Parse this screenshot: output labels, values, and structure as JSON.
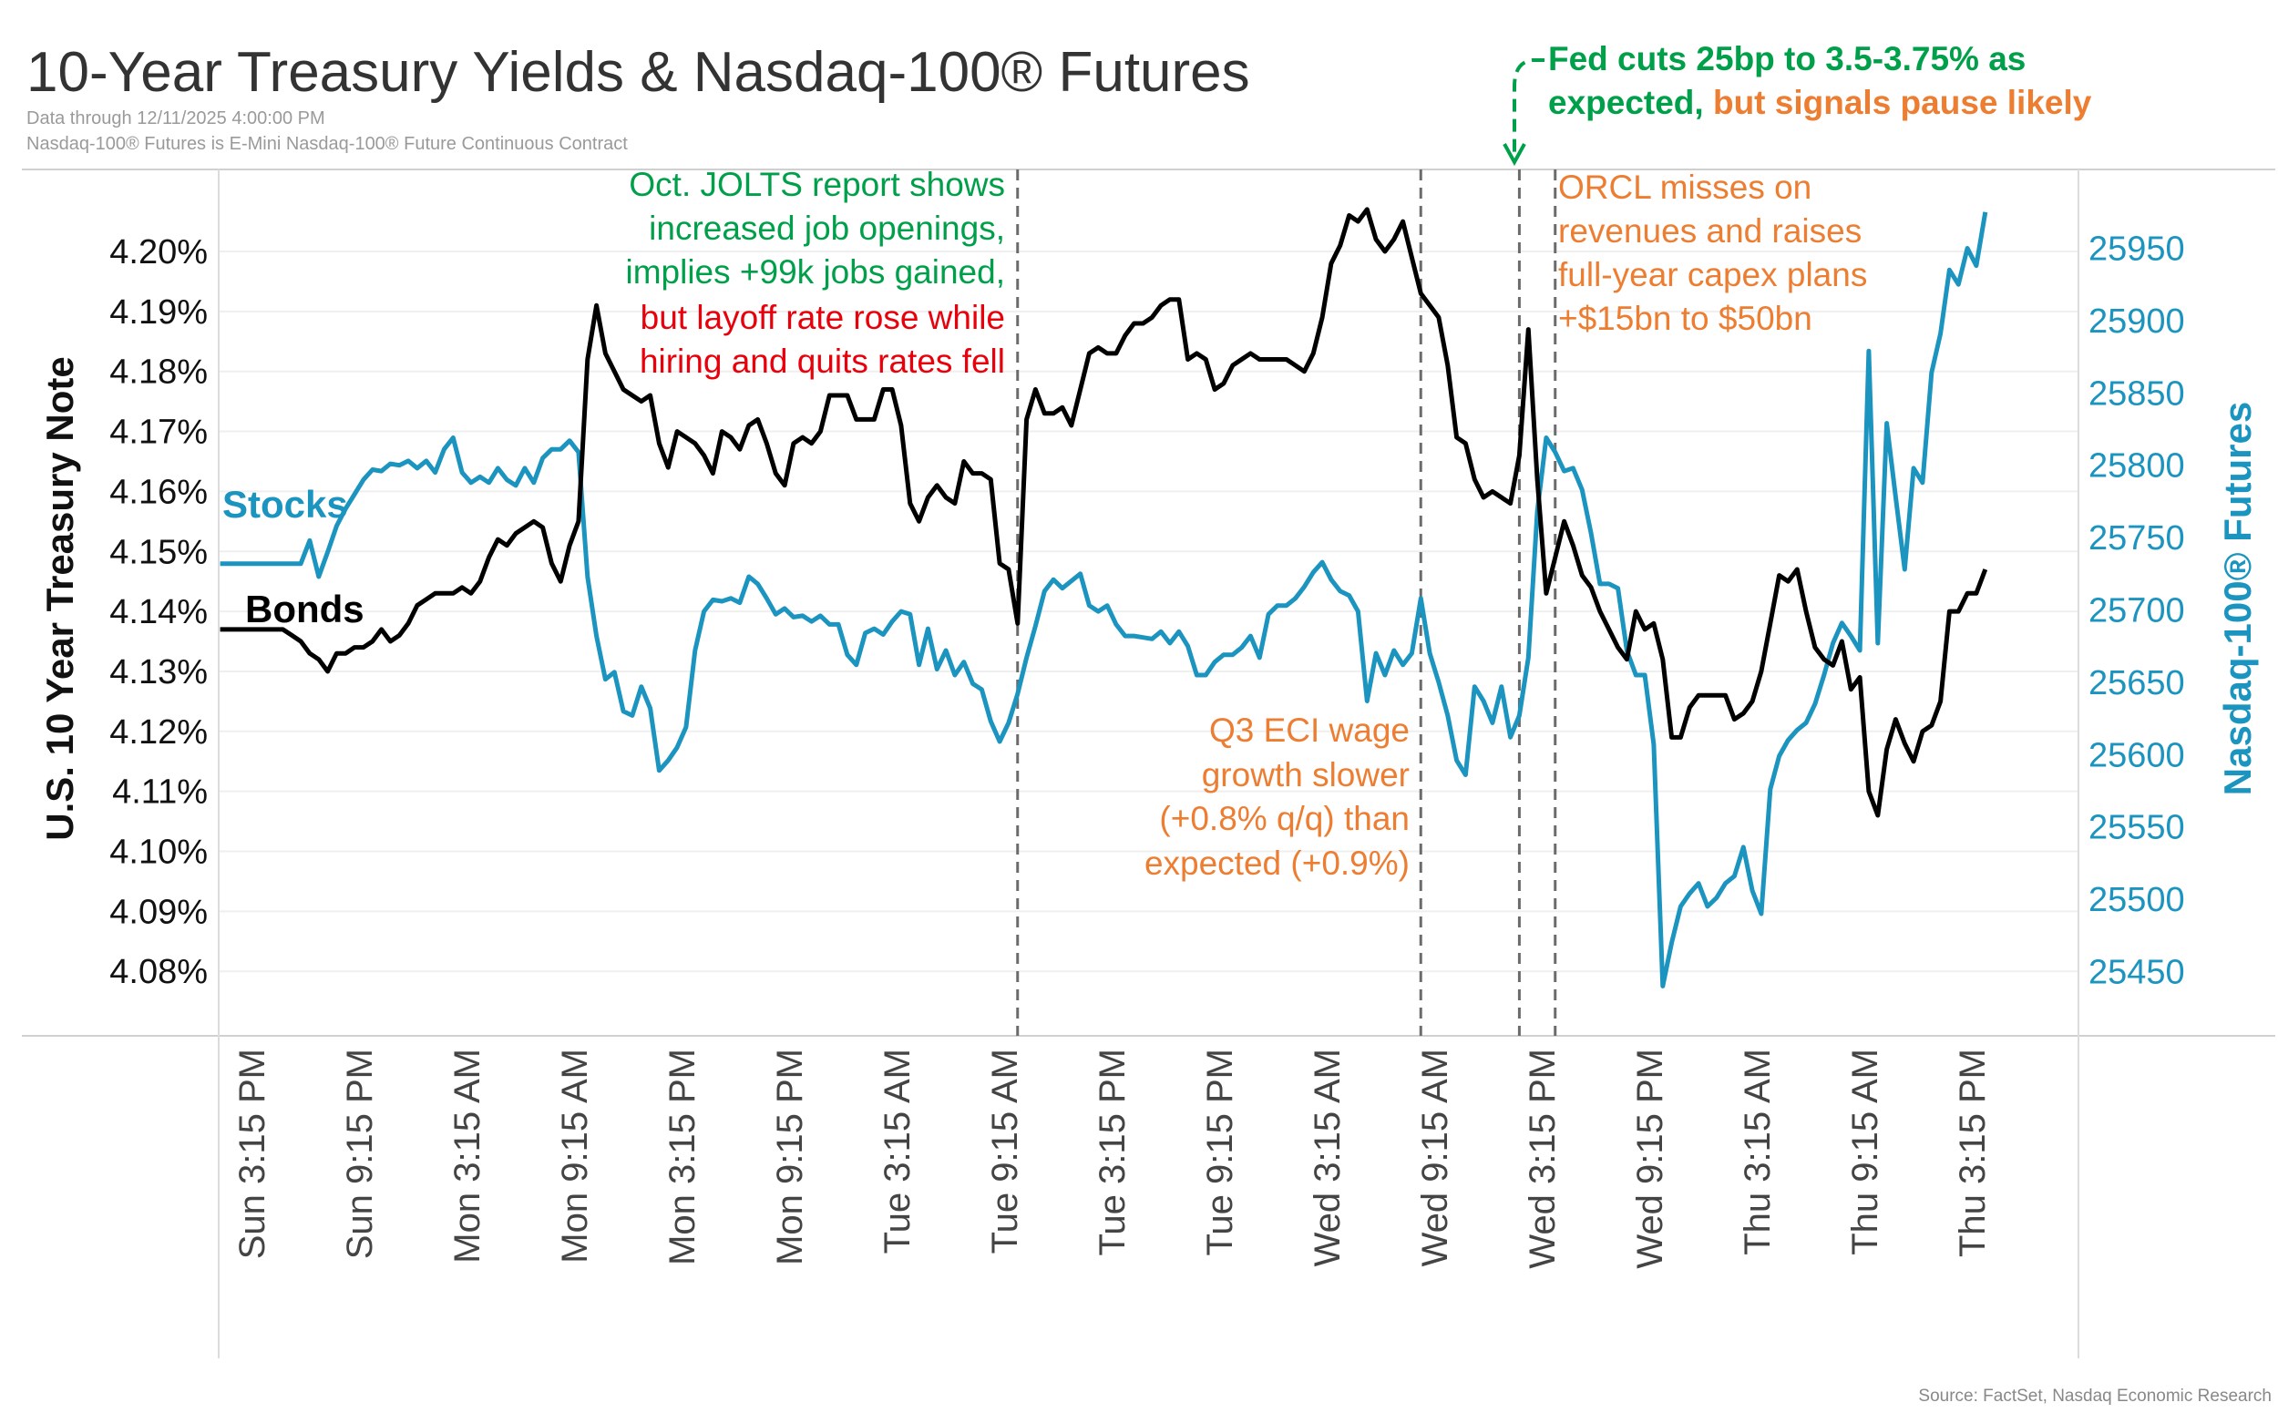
{
  "chart_data": {
    "type": "line",
    "title": "10-Year Treasury Yields & Nasdaq-100® Futures",
    "subtitle_lines": [
      "Data through 12/11/2025 4:00:00 PM",
      "Nasdaq-100® Futures is E-Mini Nasdaq-100® Future Continuous Contract"
    ],
    "source": "Source: FactSet, Nasdaq Economic Research",
    "grid": true,
    "x_tick_labels": [
      "Sun 3:15 PM",
      "Sun 9:15 PM",
      "Mon 3:15 AM",
      "Mon 9:15 AM",
      "Mon 3:15 PM",
      "Mon 9:15 PM",
      "Tue 3:15 AM",
      "Tue 9:15 AM",
      "Tue 3:15 PM",
      "Tue 9:15 PM",
      "Wed 3:15 AM",
      "Wed 9:15 AM",
      "Wed 3:15 PM",
      "Wed 9:15 PM",
      "Thu 3:15 AM",
      "Thu 9:15 AM",
      "Thu 3:15 PM"
    ],
    "x_tick_times": [
      "2025-12-07 15:15",
      "2025-12-07 21:15",
      "2025-12-08 03:15",
      "2025-12-08 09:15",
      "2025-12-08 15:15",
      "2025-12-08 21:15",
      "2025-12-09 03:15",
      "2025-12-09 09:15",
      "2025-12-09 15:15",
      "2025-12-09 21:15",
      "2025-12-10 03:15",
      "2025-12-10 09:15",
      "2025-12-10 15:15",
      "2025-12-10 21:15",
      "2025-12-11 03:15",
      "2025-12-11 09:15",
      "2025-12-11 15:15"
    ],
    "y_left": {
      "label": "U.S. 10 Year Treasury Note",
      "range": [
        4.072,
        4.215
      ],
      "ticks": [
        4.2,
        4.19,
        4.18,
        4.17,
        4.16,
        4.15,
        4.14,
        4.13,
        4.12,
        4.11,
        4.1,
        4.09,
        4.08
      ],
      "tick_labels": [
        "4.20%",
        "4.19%",
        "4.18%",
        "4.17%",
        "4.16%",
        "4.15%",
        "4.14%",
        "4.13%",
        "4.12%",
        "4.11%",
        "4.10%",
        "4.09%",
        "4.08%"
      ]
    },
    "y_right": {
      "label": "Nasdaq-100® Futures",
      "ticks": [
        25950,
        25900,
        25850,
        25800,
        25750,
        25700,
        25650,
        25600,
        25550,
        25500,
        25450
      ],
      "tick_labels": [
        "25950",
        "25900",
        "25850",
        "25800",
        "25750",
        "25700",
        "25650",
        "25600",
        "25550",
        "25500",
        "25450"
      ]
    },
    "x": [
      "2025-12-07 13:30",
      "2025-12-07 14:00",
      "2025-12-07 14:30",
      "2025-12-07 15:00",
      "2025-12-07 15:30",
      "2025-12-07 16:00",
      "2025-12-07 16:30",
      "2025-12-07 17:00",
      "2025-12-07 17:30",
      "2025-12-07 18:00",
      "2025-12-07 18:30",
      "2025-12-07 19:00",
      "2025-12-07 19:30",
      "2025-12-07 20:00",
      "2025-12-07 20:30",
      "2025-12-07 21:00",
      "2025-12-07 21:30",
      "2025-12-07 22:00",
      "2025-12-07 22:30",
      "2025-12-07 23:00",
      "2025-12-07 23:30",
      "2025-12-08 00:00",
      "2025-12-08 00:30",
      "2025-12-08 01:00",
      "2025-12-08 01:30",
      "2025-12-08 02:00",
      "2025-12-08 02:30",
      "2025-12-08 03:00",
      "2025-12-08 03:30",
      "2025-12-08 04:00",
      "2025-12-08 04:30",
      "2025-12-08 05:00",
      "2025-12-08 05:30",
      "2025-12-08 06:00",
      "2025-12-08 06:30",
      "2025-12-08 07:00",
      "2025-12-08 07:30",
      "2025-12-08 08:00",
      "2025-12-08 08:30",
      "2025-12-08 09:00",
      "2025-12-08 09:30",
      "2025-12-08 10:00",
      "2025-12-08 10:30",
      "2025-12-08 11:00",
      "2025-12-08 11:30",
      "2025-12-08 12:00",
      "2025-12-08 12:30",
      "2025-12-08 13:00",
      "2025-12-08 13:30",
      "2025-12-08 14:00",
      "2025-12-08 14:30",
      "2025-12-08 15:00",
      "2025-12-08 15:30",
      "2025-12-08 16:00",
      "2025-12-08 16:30",
      "2025-12-08 17:00",
      "2025-12-08 17:30",
      "2025-12-08 18:00",
      "2025-12-08 18:30",
      "2025-12-08 19:00",
      "2025-12-08 19:30",
      "2025-12-08 20:00",
      "2025-12-08 20:30",
      "2025-12-08 21:00",
      "2025-12-08 21:30",
      "2025-12-08 22:00",
      "2025-12-08 22:30",
      "2025-12-08 23:00",
      "2025-12-08 23:30",
      "2025-12-09 00:00",
      "2025-12-09 00:30",
      "2025-12-09 01:00",
      "2025-12-09 01:30",
      "2025-12-09 02:00",
      "2025-12-09 02:30",
      "2025-12-09 03:00",
      "2025-12-09 03:30",
      "2025-12-09 04:00",
      "2025-12-09 04:30",
      "2025-12-09 05:00",
      "2025-12-09 05:30",
      "2025-12-09 06:00",
      "2025-12-09 06:30",
      "2025-12-09 07:00",
      "2025-12-09 07:30",
      "2025-12-09 08:00",
      "2025-12-09 08:30",
      "2025-12-09 09:00",
      "2025-12-09 09:30",
      "2025-12-09 10:00",
      "2025-12-09 10:30",
      "2025-12-09 11:00",
      "2025-12-09 11:30",
      "2025-12-09 12:00",
      "2025-12-09 12:30",
      "2025-12-09 13:00",
      "2025-12-09 13:30",
      "2025-12-09 14:00",
      "2025-12-09 14:30",
      "2025-12-09 15:00",
      "2025-12-09 15:30",
      "2025-12-09 16:00",
      "2025-12-09 16:30",
      "2025-12-09 17:00",
      "2025-12-09 17:30",
      "2025-12-09 18:00",
      "2025-12-09 18:30",
      "2025-12-09 19:00",
      "2025-12-09 19:30",
      "2025-12-09 20:00",
      "2025-12-09 20:30",
      "2025-12-09 21:00",
      "2025-12-09 21:30",
      "2025-12-09 22:00",
      "2025-12-09 22:30",
      "2025-12-09 23:00",
      "2025-12-09 23:30",
      "2025-12-10 00:00",
      "2025-12-10 00:30",
      "2025-12-10 01:00",
      "2025-12-10 01:30",
      "2025-12-10 02:00",
      "2025-12-10 02:30",
      "2025-12-10 03:00",
      "2025-12-10 03:30",
      "2025-12-10 04:00",
      "2025-12-10 04:30",
      "2025-12-10 05:00",
      "2025-12-10 05:30",
      "2025-12-10 06:00",
      "2025-12-10 06:30",
      "2025-12-10 07:00",
      "2025-12-10 07:30",
      "2025-12-10 08:00",
      "2025-12-10 08:30",
      "2025-12-10 09:00",
      "2025-12-10 09:30",
      "2025-12-10 10:00",
      "2025-12-10 10:30",
      "2025-12-10 11:00",
      "2025-12-10 11:30",
      "2025-12-10 12:00",
      "2025-12-10 12:30",
      "2025-12-10 13:00",
      "2025-12-10 13:30",
      "2025-12-10 14:00",
      "2025-12-10 14:30",
      "2025-12-10 15:00",
      "2025-12-10 15:30",
      "2025-12-10 16:00",
      "2025-12-10 16:30",
      "2025-12-10 17:00",
      "2025-12-10 17:30",
      "2025-12-10 18:00",
      "2025-12-10 18:30",
      "2025-12-10 19:00",
      "2025-12-10 19:30",
      "2025-12-10 20:00",
      "2025-12-10 20:30",
      "2025-12-10 21:00",
      "2025-12-10 21:30",
      "2025-12-10 22:00",
      "2025-12-10 22:30",
      "2025-12-10 23:00",
      "2025-12-10 23:30",
      "2025-12-11 00:00",
      "2025-12-11 00:30",
      "2025-12-11 01:00",
      "2025-12-11 01:30",
      "2025-12-11 02:00",
      "2025-12-11 02:30",
      "2025-12-11 03:00",
      "2025-12-11 03:30",
      "2025-12-11 04:00",
      "2025-12-11 04:30",
      "2025-12-11 05:00",
      "2025-12-11 05:30",
      "2025-12-11 06:00",
      "2025-12-11 06:30",
      "2025-12-11 07:00",
      "2025-12-11 07:30",
      "2025-12-11 08:00",
      "2025-12-11 08:30",
      "2025-12-11 09:00",
      "2025-12-11 09:30",
      "2025-12-11 10:00",
      "2025-12-11 10:30",
      "2025-12-11 11:00",
      "2025-12-11 11:30",
      "2025-12-11 12:00",
      "2025-12-11 12:30",
      "2025-12-11 13:00",
      "2025-12-11 13:30",
      "2025-12-11 14:00",
      "2025-12-11 14:30",
      "2025-12-11 15:00",
      "2025-12-11 15:30",
      "2025-12-11 16:00"
    ],
    "series": [
      {
        "name": "Bonds",
        "axis": "left",
        "color": "#000000",
        "values": [
          4.137,
          4.137,
          4.137,
          4.137,
          4.137,
          4.137,
          4.137,
          4.137,
          4.136,
          4.135,
          4.133,
          4.132,
          4.13,
          4.133,
          4.133,
          4.134,
          4.134,
          4.135,
          4.137,
          4.135,
          4.136,
          4.138,
          4.141,
          4.142,
          4.143,
          4.143,
          4.143,
          4.144,
          4.143,
          4.145,
          4.149,
          4.152,
          4.151,
          4.153,
          4.154,
          4.155,
          4.154,
          4.148,
          4.145,
          4.151,
          4.155,
          4.182,
          4.191,
          4.183,
          4.18,
          4.177,
          4.176,
          4.175,
          4.176,
          4.168,
          4.164,
          4.17,
          4.169,
          4.168,
          4.166,
          4.163,
          4.17,
          4.169,
          4.167,
          4.171,
          4.172,
          4.168,
          4.163,
          4.161,
          4.168,
          4.169,
          4.168,
          4.17,
          4.176,
          4.176,
          4.176,
          4.172,
          4.172,
          4.172,
          4.177,
          4.177,
          4.171,
          4.158,
          4.155,
          4.159,
          4.161,
          4.159,
          4.158,
          4.165,
          4.163,
          4.163,
          4.162,
          4.148,
          4.147,
          4.138,
          4.172,
          4.177,
          4.173,
          4.173,
          4.174,
          4.171,
          4.177,
          4.183,
          4.184,
          4.183,
          4.183,
          4.186,
          4.188,
          4.188,
          4.189,
          4.191,
          4.192,
          4.192,
          4.182,
          4.183,
          4.182,
          4.177,
          4.178,
          4.181,
          4.182,
          4.183,
          4.182,
          4.182,
          4.182,
          4.182,
          4.181,
          4.18,
          4.183,
          4.189,
          4.198,
          4.201,
          4.206,
          4.205,
          4.207,
          4.202,
          4.2,
          4.202,
          4.205,
          4.199,
          4.193,
          4.191,
          4.189,
          4.181,
          4.169,
          4.168,
          4.162,
          4.159,
          4.16,
          4.159,
          4.158,
          4.166,
          4.187,
          4.162,
          4.143,
          4.149,
          4.155,
          4.151,
          4.146,
          4.144,
          4.14,
          4.137,
          4.134,
          4.132,
          4.14,
          4.137,
          4.138,
          4.132,
          4.119,
          4.119,
          4.124,
          4.126,
          4.126,
          4.126,
          4.126,
          4.122,
          4.123,
          4.125,
          4.13,
          4.138,
          4.146,
          4.145,
          4.147,
          4.14,
          4.134,
          4.132,
          4.131,
          4.135,
          4.127,
          4.129,
          4.11,
          4.106,
          4.117,
          4.122,
          4.118,
          4.115,
          4.12,
          4.121,
          4.125,
          4.14,
          4.14,
          4.143,
          4.143,
          4.147
        ]
      },
      {
        "name": "Stocks",
        "axis": "right",
        "color": "#1b94bf",
        "values": [
          25732,
          25732,
          25732,
          25732,
          25732,
          25732,
          25732,
          25732,
          25732,
          25732,
          25748,
          25723,
          25740,
          25758,
          25770,
          25780,
          25790,
          25797,
          25796,
          25801,
          25800,
          25803,
          25798,
          25803,
          25795,
          25811,
          25819,
          25795,
          25788,
          25792,
          25788,
          25798,
          25790,
          25786,
          25798,
          25788,
          25805,
          25811,
          25811,
          25817,
          25809,
          25723,
          25682,
          25652,
          25657,
          25630,
          25627,
          25647,
          25632,
          25589,
          25596,
          25605,
          25619,
          25672,
          25699,
          25707,
          25706,
          25708,
          25705,
          25723,
          25718,
          25708,
          25697,
          25701,
          25695,
          25696,
          25692,
          25696,
          25690,
          25690,
          25669,
          25662,
          25684,
          25687,
          25683,
          25692,
          25699,
          25697,
          25662,
          25687,
          25659,
          25672,
          25655,
          25664,
          25649,
          25645,
          25623,
          25609,
          25622,
          25642,
          25667,
          25689,
          25713,
          25721,
          25715,
          25720,
          25725,
          25703,
          25699,
          25703,
          25690,
          25682,
          25682,
          25681,
          25680,
          25685,
          25677,
          25685,
          25675,
          25655,
          25655,
          25664,
          25669,
          25669,
          25674,
          25682,
          25667,
          25697,
          25703,
          25703,
          25708,
          25716,
          25726,
          25733,
          25721,
          25713,
          25710,
          25699,
          25637,
          25670,
          25655,
          25672,
          25662,
          25670,
          25708,
          25670,
          25650,
          25627,
          25596,
          25586,
          25647,
          25637,
          25622,
          25647,
          25612,
          25627,
          25667,
          25768,
          25819,
          25809,
          25796,
          25798,
          25783,
          25753,
          25718,
          25718,
          25715,
          25672,
          25655,
          25655,
          25607,
          25440,
          25470,
          25495,
          25504,
          25511,
          25495,
          25501,
          25511,
          25516,
          25536,
          25506,
          25490,
          25576,
          25599,
          25610,
          25617,
          25622,
          25635,
          25655,
          25677,
          25691,
          25682,
          25672,
          25879,
          25677,
          25829,
          25778,
          25728,
          25798,
          25788,
          25864,
          25891,
          25935,
          25925,
          25950,
          25938,
          25975
        ]
      }
    ],
    "event_lines": [
      "2025-12-09 10:00",
      "2025-12-10 08:30",
      "2025-12-10 14:00",
      "2025-12-10 16:00"
    ],
    "annotations": {
      "jolts": {
        "green_lines": [
          "Oct. JOLTS report shows",
          "increased job openings,",
          "implies +99k jobs gained,"
        ],
        "red_lines": [
          "but layoff rate rose while",
          "hiring and quits rates fell"
        ]
      },
      "eci": {
        "lines": [
          "Q3 ECI wage",
          "growth slower",
          "(+0.8% q/q) than",
          "expected (+0.9%)"
        ]
      },
      "orcl": {
        "lines": [
          "ORCL misses on",
          "revenues and raises",
          "full-year capex plans",
          "+$15bn to $50bn"
        ]
      },
      "fed": {
        "line1": "Fed cuts 25bp to 3.5-3.75% as",
        "line2_green": "expected,",
        "line2_orange": " but signals pause likely"
      }
    },
    "colors": {
      "green": "#00a04a",
      "red": "#e8000b",
      "orange": "#ed7d31",
      "stocks": "#1b94bf",
      "bonds": "#000000"
    }
  }
}
